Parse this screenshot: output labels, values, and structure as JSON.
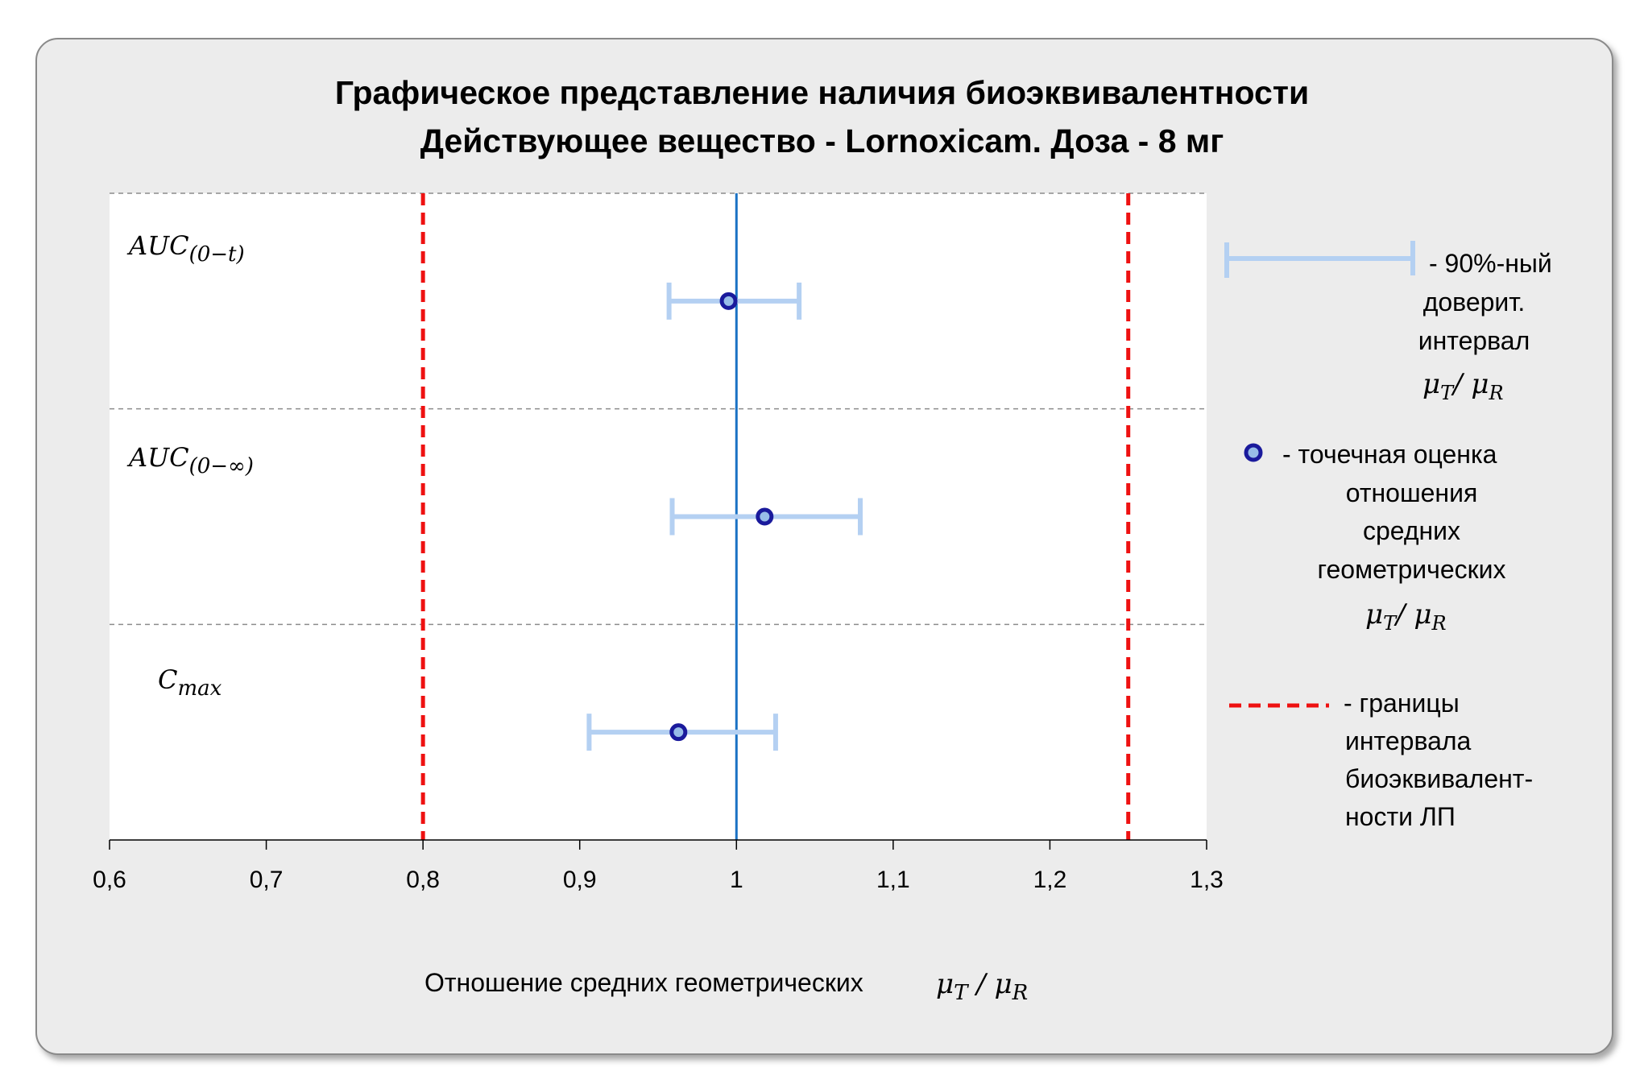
{
  "chart_data": {
    "type": "forest",
    "title": "Графическое представление наличия биоэквивалентности",
    "subtitle": "Действующее вещество - Lornoxicam. Доза - 8 мг",
    "xlabel": "Отношение средних геометрических",
    "xlabel_math": "μT / μR",
    "xlim": [
      0.6,
      1.3
    ],
    "x_ticks": [
      "0,6",
      "0,7",
      "0,8",
      "0,9",
      "1",
      "1,1",
      "1,2",
      "1,3"
    ],
    "reference_line": 1.0,
    "bioequivalence_limits": [
      0.8,
      1.25
    ],
    "rows": [
      {
        "label": "AUC(0−t)",
        "point": 0.995,
        "ci_low": 0.957,
        "ci_high": 1.04
      },
      {
        "label": "AUC(0−∞)",
        "point": 1.018,
        "ci_low": 0.959,
        "ci_high": 1.079
      },
      {
        "label": "Cmax",
        "point": 0.963,
        "ci_low": 0.906,
        "ci_high": 1.025
      }
    ],
    "grid": "horizontal dashed separators",
    "legend_position": "right",
    "colors": {
      "ci": "#b4d0f2",
      "point_fill": "#98bde8",
      "point_edge": "#1a1a9c",
      "ref_line": "#1a72c4",
      "limits": "#ee1111"
    }
  },
  "legend": {
    "ci_text": [
      "- 90%-ный",
      "доверит.",
      "интервал"
    ],
    "point_text": [
      "-  точечная оценка",
      "отношения",
      "средних",
      "геометрических"
    ],
    "limits_text": [
      "- границы",
      "интервала",
      "биоэквивалент-",
      "ности ЛП"
    ],
    "ratio_math": "μT/ μR"
  }
}
